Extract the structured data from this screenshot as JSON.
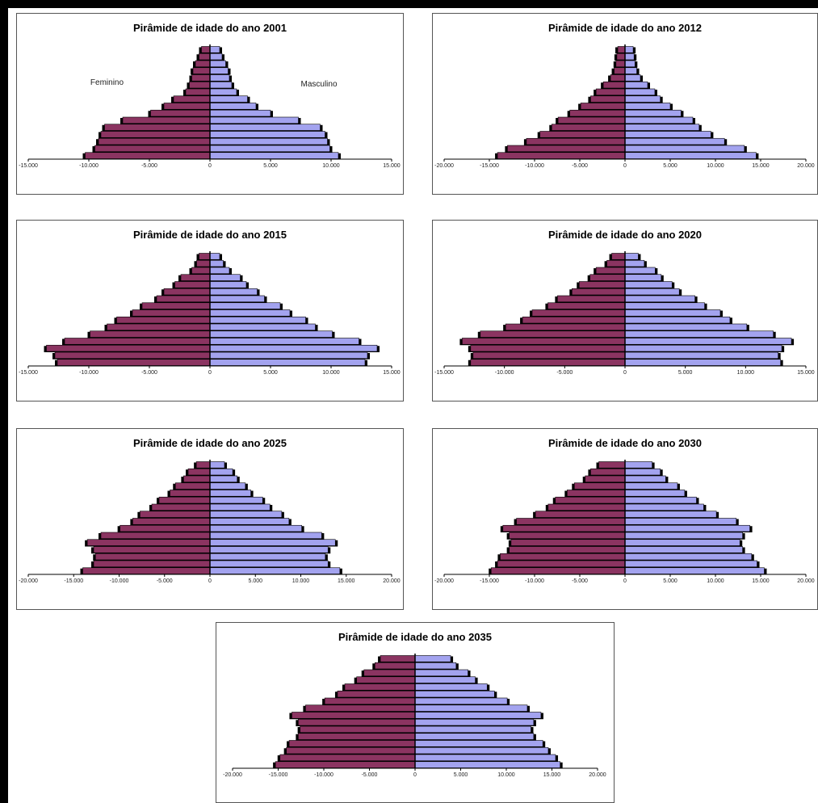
{
  "colors": {
    "female": "#8b3461",
    "male": "#a3a3ef",
    "shadow": "#000000",
    "axis": "#000000"
  },
  "chart_data": [
    {
      "type": "bar",
      "orientation": "horizontal-pyramid",
      "title": "Pirâmide de idade do ano 2001",
      "xlim": [
        -15000,
        15000
      ],
      "ticks": [
        -15000,
        -10000,
        -5000,
        0,
        5000,
        10000,
        15000
      ],
      "tick_labels": [
        "-15.000",
        "-10.000",
        "-5.000",
        "0",
        "5.000",
        "10.000",
        "15.000"
      ],
      "side_labels": {
        "left": "Feminino",
        "right": "Masculino"
      },
      "order": "bottom-to-top",
      "series": [
        {
          "name": "Feminino",
          "values": [
            10300,
            9500,
            9200,
            9000,
            8700,
            7200,
            4900,
            3800,
            3000,
            2000,
            1700,
            1500,
            1400,
            1200,
            900,
            700
          ]
        },
        {
          "name": "Masculino",
          "values": [
            10600,
            9900,
            9700,
            9500,
            9100,
            7300,
            5000,
            3800,
            3100,
            2200,
            1800,
            1600,
            1500,
            1300,
            1000,
            800
          ]
        }
      ]
    },
    {
      "type": "bar",
      "orientation": "horizontal-pyramid",
      "title": "Pirâmide de idade do ano 2012",
      "xlim": [
        -20000,
        20000
      ],
      "ticks": [
        -20000,
        -15000,
        -10000,
        -5000,
        0,
        5000,
        10000,
        15000,
        20000
      ],
      "tick_labels": [
        "-20.000",
        "-15.000",
        "-10.000",
        "-5.000",
        "0",
        "5.000",
        "10.000",
        "15.000",
        "20.000"
      ],
      "order": "bottom-to-top",
      "series": [
        {
          "name": "",
          "values": [
            14100,
            13000,
            10900,
            9400,
            8100,
            7400,
            6100,
            4900,
            3800,
            3200,
            2400,
            1600,
            1200,
            1000,
            900,
            800
          ]
        },
        {
          "name": "",
          "values": [
            14500,
            13200,
            11000,
            9500,
            8200,
            7500,
            6200,
            5000,
            3900,
            3300,
            2500,
            1700,
            1300,
            1100,
            1000,
            900
          ]
        }
      ]
    },
    {
      "type": "bar",
      "orientation": "horizontal-pyramid",
      "title": "Pirâmide de idade do ano 2015",
      "xlim": [
        -15000,
        15000
      ],
      "ticks": [
        -15000,
        -10000,
        -5000,
        0,
        5000,
        10000,
        15000
      ],
      "tick_labels": [
        "-15.000",
        "-10.000",
        "-5.000",
        "0",
        "5.000",
        "10.000",
        "15.000"
      ],
      "order": "bottom-to-top",
      "series": [
        {
          "name": "",
          "values": [
            12600,
            12800,
            13500,
            12000,
            9900,
            8500,
            7700,
            6400,
            5600,
            4400,
            3800,
            2900,
            2400,
            1500,
            1100,
            900
          ]
        },
        {
          "name": "",
          "values": [
            12800,
            13000,
            13800,
            12300,
            10100,
            8700,
            7900,
            6600,
            5800,
            4500,
            3900,
            3000,
            2500,
            1600,
            1100,
            800
          ]
        }
      ]
    },
    {
      "type": "bar",
      "orientation": "horizontal-pyramid",
      "title": "Pirâmide de idade do ano 2020",
      "xlim": [
        -15000,
        15000
      ],
      "ticks": [
        -15000,
        -10000,
        -5000,
        0,
        5000,
        10000,
        15000
      ],
      "tick_labels": [
        "-15.000",
        "-10.000",
        "-5.000",
        "0",
        "5.000",
        "10.000",
        "15.000"
      ],
      "order": "bottom-to-top",
      "series": [
        {
          "name": "",
          "values": [
            12800,
            12600,
            12800,
            13500,
            12000,
            9900,
            8500,
            7700,
            6400,
            5600,
            4400,
            3800,
            2900,
            2400,
            1500,
            1100
          ]
        },
        {
          "name": "",
          "values": [
            12900,
            12700,
            13000,
            13800,
            12300,
            10100,
            8700,
            7900,
            6600,
            5800,
            4500,
            3900,
            3000,
            2500,
            1600,
            1100
          ]
        }
      ]
    },
    {
      "type": "bar",
      "orientation": "horizontal-pyramid",
      "title": "Pirâmide de idade do ano 2025",
      "xlim": [
        -20000,
        20000
      ],
      "ticks": [
        -20000,
        -15000,
        -10000,
        -5000,
        0,
        5000,
        10000,
        15000,
        20000
      ],
      "tick_labels": [
        "-20.000",
        "-15.000",
        "-10.000",
        "-5.000",
        "0",
        "5.000",
        "10.000",
        "15.000",
        "20.000"
      ],
      "order": "bottom-to-top",
      "series": [
        {
          "name": "",
          "values": [
            14000,
            12800,
            12600,
            12800,
            13500,
            12000,
            9900,
            8500,
            7700,
            6400,
            5600,
            4400,
            3800,
            2900,
            2400,
            1500
          ]
        },
        {
          "name": "",
          "values": [
            14300,
            13000,
            12700,
            13000,
            13800,
            12300,
            10100,
            8700,
            7900,
            6600,
            5800,
            4500,
            3900,
            3000,
            2500,
            1600
          ]
        }
      ]
    },
    {
      "type": "bar",
      "orientation": "horizontal-pyramid",
      "title": "Pirâmide de idade do ano 2030",
      "xlim": [
        -20000,
        20000
      ],
      "ticks": [
        -20000,
        -15000,
        -10000,
        -5000,
        0,
        5000,
        10000,
        15000,
        20000
      ],
      "tick_labels": [
        "-20.000",
        "-15.000",
        "-10.000",
        "-5.000",
        "0",
        "5.000",
        "10.000",
        "15.000",
        "20.000"
      ],
      "order": "bottom-to-top",
      "series": [
        {
          "name": "",
          "values": [
            14800,
            14100,
            13800,
            12800,
            12600,
            12800,
            13500,
            12000,
            9900,
            8500,
            7700,
            6400,
            5600,
            4400,
            3800,
            2900
          ]
        },
        {
          "name": "",
          "values": [
            15400,
            14600,
            14000,
            13000,
            12700,
            13000,
            13800,
            12300,
            10100,
            8700,
            7900,
            6600,
            5800,
            4500,
            3900,
            3000
          ]
        }
      ]
    },
    {
      "type": "bar",
      "orientation": "horizontal-pyramid",
      "title": "Pirâmide de idade do ano 2035",
      "xlim": [
        -20000,
        20000
      ],
      "ticks": [
        -20000,
        -15000,
        -10000,
        -5000,
        0,
        5000,
        10000,
        15000,
        20000
      ],
      "tick_labels": [
        "-20.000",
        "-15.000",
        "-10.000",
        "-5.000",
        "0",
        "5.000",
        "10.000",
        "15.000",
        "20.000"
      ],
      "order": "bottom-to-top",
      "series": [
        {
          "name": "",
          "values": [
            15300,
            14800,
            14100,
            13800,
            12800,
            12600,
            12800,
            13500,
            12000,
            9900,
            8500,
            7700,
            6400,
            5600,
            4400,
            3800
          ]
        },
        {
          "name": "",
          "values": [
            15900,
            15400,
            14600,
            14000,
            13000,
            12700,
            13000,
            13800,
            12300,
            10100,
            8700,
            7900,
            6600,
            5800,
            4500,
            3900
          ]
        }
      ]
    }
  ]
}
